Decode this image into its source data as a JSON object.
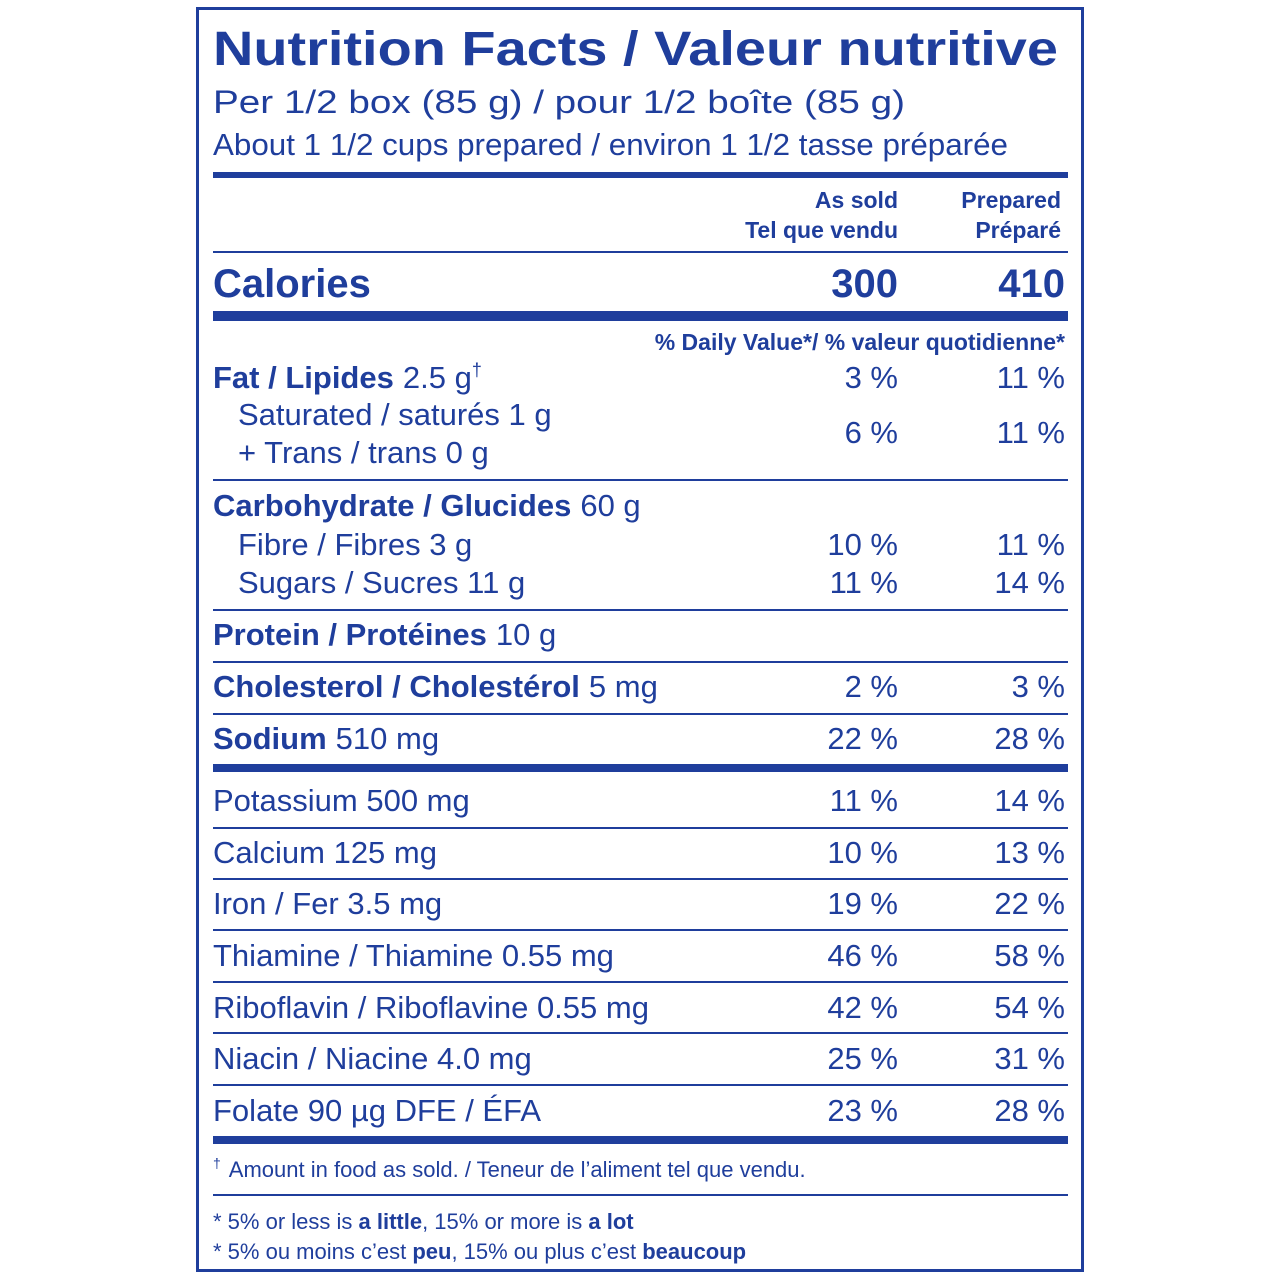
{
  "header": {
    "title": "Nutrition Facts / Valeur nutritive",
    "serving": "Per 1/2 box (85 g) / pour 1/2 boîte (85 g)",
    "serving_note": "About 1 1/2 cups prepared / environ 1 1/2 tasse préparée"
  },
  "columns": [
    {
      "en": "As sold",
      "fr": "Tel que vendu"
    },
    {
      "en": "Prepared",
      "fr": "Préparé"
    }
  ],
  "calories": {
    "label": "Calories",
    "values": [
      "300",
      "410"
    ]
  },
  "daily_value_heading": "% Daily Value*/ % valeur quotidienne*",
  "rows": [
    {
      "name": "Fat / Lipides",
      "amount": "2.5 g",
      "mark": "†",
      "values": [
        "3 %",
        "11 %"
      ]
    },
    {
      "lines": [
        "Saturated / saturés 1 g",
        "+ Trans / trans 0 g"
      ],
      "values": [
        "6 %",
        "11 %"
      ]
    },
    {
      "name": "Carbohydrate / Glucides",
      "amount": "60 g"
    },
    {
      "label": "Fibre / Fibres 3 g",
      "values": [
        "10 %",
        "11 %"
      ]
    },
    {
      "label": "Sugars / Sucres 11 g",
      "values": [
        "11 %",
        "14 %"
      ]
    },
    {
      "name": "Protein / Protéines",
      "amount": "10 g"
    },
    {
      "name": "Cholesterol / Cholestérol",
      "amount": "5 mg",
      "values": [
        "2 %",
        "3 %"
      ]
    },
    {
      "name": "Sodium",
      "amount": "510 mg",
      "values": [
        "22 %",
        "28 %"
      ]
    },
    {
      "label": "Potassium 500 mg",
      "values": [
        "11 %",
        "14 %"
      ]
    },
    {
      "label": "Calcium 125 mg",
      "values": [
        "10 %",
        "13 %"
      ]
    },
    {
      "label": "Iron / Fer 3.5 mg",
      "values": [
        "19 %",
        "22 %"
      ]
    },
    {
      "label": "Thiamine / Thiamine 0.55 mg",
      "values": [
        "46 %",
        "58 %"
      ]
    },
    {
      "label": "Riboflavin / Riboflavine 0.55 mg",
      "values": [
        "42 %",
        "54 %"
      ]
    },
    {
      "label": "Niacin / Niacine 4.0 mg",
      "values": [
        "25 %",
        "31 %"
      ]
    },
    {
      "label": "Folate 90 µg DFE / ÉFA",
      "values": [
        "23 %",
        "28 %"
      ]
    }
  ],
  "footnotes": [
    {
      "mark": "†",
      "text": "Amount in food as sold. / Teneur de l’aliment tel que vendu."
    },
    {
      "parts": [
        "* 5% or less is ",
        "a little",
        ", 15% or more is ",
        "a lot"
      ]
    },
    {
      "parts": [
        "* 5% ou moins c’est ",
        "peu",
        ", 15% ou plus c’est ",
        "beaucoup"
      ]
    }
  ]
}
